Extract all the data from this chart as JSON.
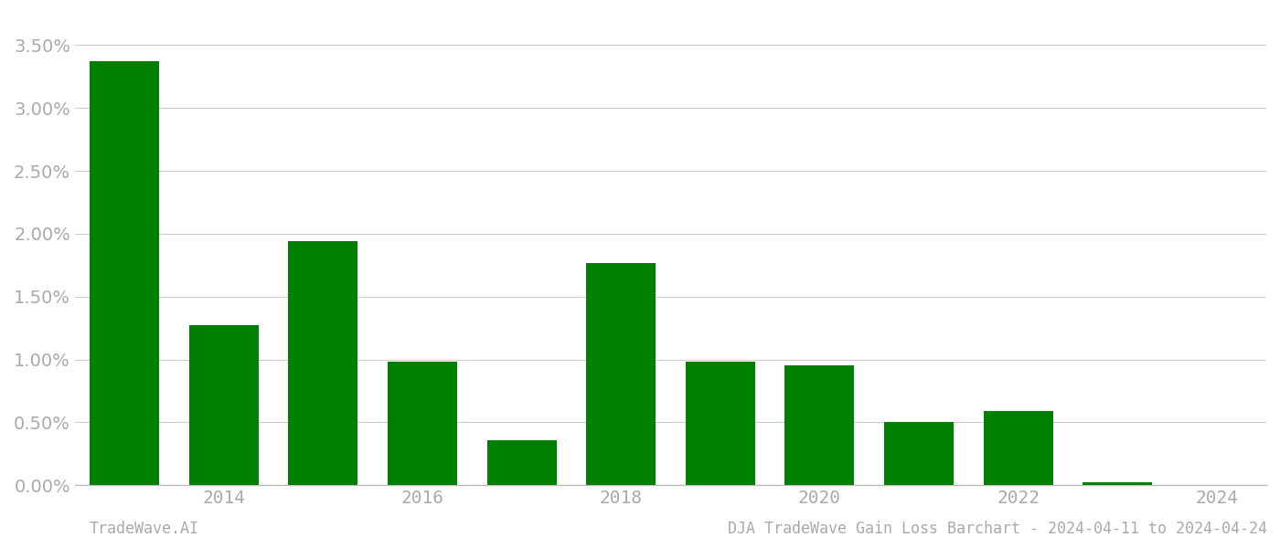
{
  "years": [
    2013,
    2014,
    2015,
    2016,
    2017,
    2018,
    2019,
    2020,
    2021,
    2022,
    2023
  ],
  "values": [
    3.37,
    1.27,
    1.94,
    0.98,
    0.36,
    1.77,
    0.98,
    0.95,
    0.5,
    0.59,
    0.02
  ],
  "bar_color": "#008000",
  "background_color": "#ffffff",
  "grid_color": "#cccccc",
  "axis_label_color": "#aaaaaa",
  "ylabel_ticks": [
    0.0,
    0.5,
    1.0,
    1.5,
    2.0,
    2.5,
    3.0,
    3.5
  ],
  "ylim": [
    0,
    3.75
  ],
  "xtick_positions": [
    2014,
    2016,
    2018,
    2020,
    2022,
    2024
  ],
  "xtick_labels": [
    "2014",
    "2016",
    "2018",
    "2020",
    "2022",
    "2024"
  ],
  "xlim": [
    2012.5,
    2024.5
  ],
  "footer_left": "TradeWave.AI",
  "footer_right": "DJA TradeWave Gain Loss Barchart - 2024-04-11 to 2024-04-24",
  "footer_color": "#aaaaaa",
  "bar_width": 0.7
}
